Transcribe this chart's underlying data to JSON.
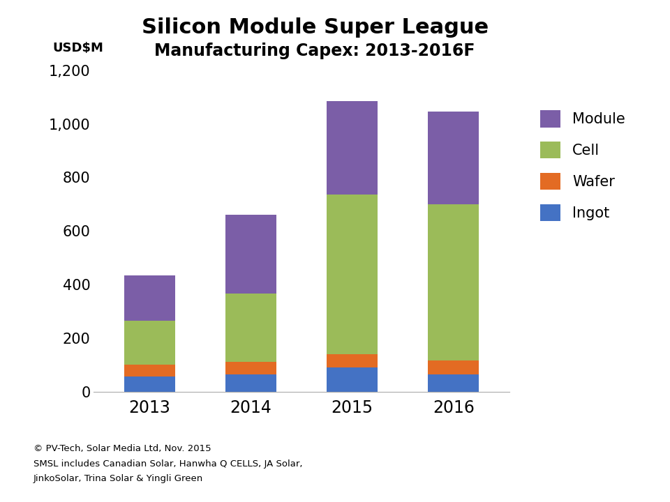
{
  "years": [
    "2013",
    "2014",
    "2015",
    "2016"
  ],
  "ingot": [
    55,
    65,
    90,
    65
  ],
  "wafer": [
    45,
    45,
    50,
    50
  ],
  "cell": [
    165,
    255,
    595,
    585
  ],
  "module": [
    170,
    295,
    350,
    345
  ],
  "colors": {
    "ingot": "#4472C4",
    "wafer": "#E36B23",
    "cell": "#9BBB59",
    "module": "#7B5EA7"
  },
  "title_line1": "Silicon Module Super League",
  "title_line2": "Manufacturing Capex: 2013-2016F",
  "ylabel": "USD$M",
  "ylim": [
    0,
    1200
  ],
  "yticks": [
    0,
    200,
    400,
    600,
    800,
    1000,
    1200
  ],
  "legend_labels": [
    "Module",
    "Cell",
    "Wafer",
    "Ingot"
  ],
  "legend_colors": [
    "#7B5EA7",
    "#9BBB59",
    "#E36B23",
    "#4472C4"
  ],
  "footnote_line1": "© PV-Tech, Solar Media Ltd, Nov. 2015",
  "footnote_line2": "SMSL includes Canadian Solar, Hanwha Q CELLS, JA Solar,",
  "footnote_line3": "JinkoSolar, Trina Solar & Yingli Green",
  "bar_width": 0.5,
  "background_color": "#FFFFFF"
}
